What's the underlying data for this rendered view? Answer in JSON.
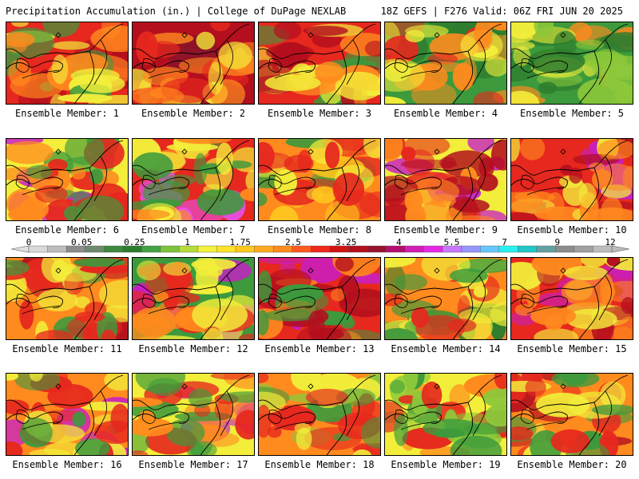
{
  "header": {
    "title": "Precipitation Accumulation (in.) | College of DuPage NEXLAB",
    "run_info": "18Z GEFS | F276 Valid: 06Z FRI JUN 20 2025"
  },
  "colors": {
    "levels": [
      "#d9d9d9",
      "#bdbdbd",
      "#8c8c8c",
      "#6e8a6e",
      "#3c8a3c",
      "#2e7d2e",
      "#44a144",
      "#7cc33a",
      "#b6dc3a",
      "#f2f23a",
      "#ffe22a",
      "#ffc81e",
      "#ffa81e",
      "#ff8a1e",
      "#ff5a1e",
      "#f0281e",
      "#d21414",
      "#b40f1e",
      "#96142d",
      "#b40f6e",
      "#d21eb4",
      "#e628e6",
      "#c878ff",
      "#9696ff",
      "#64c8ff",
      "#28f0f0",
      "#1ec8c8",
      "#64a0a0",
      "#8c8c8c",
      "#a0a0a0",
      "#bdbdbd"
    ]
  },
  "colorbar": {
    "tick_labels": [
      "0",
      "0.05",
      "0.25",
      "1",
      "1.75",
      "2.5",
      "3.25",
      "4",
      "5.5",
      "7",
      "9",
      "12"
    ]
  },
  "members": [
    {
      "label": "Ensemble Member: 1"
    },
    {
      "label": "Ensemble Member: 2"
    },
    {
      "label": "Ensemble Member: 3"
    },
    {
      "label": "Ensemble Member: 4"
    },
    {
      "label": "Ensemble Member: 5"
    },
    {
      "label": "Ensemble Member: 6"
    },
    {
      "label": "Ensemble Member: 7"
    },
    {
      "label": "Ensemble Member: 8"
    },
    {
      "label": "Ensemble Member: 9"
    },
    {
      "label": "Ensemble Member: 10"
    },
    {
      "label": "Ensemble Member: 11"
    },
    {
      "label": "Ensemble Member: 12"
    },
    {
      "label": "Ensemble Member: 13"
    },
    {
      "label": "Ensemble Member: 14"
    },
    {
      "label": "Ensemble Member: 15"
    },
    {
      "label": "Ensemble Member: 16"
    },
    {
      "label": "Ensemble Member: 17"
    },
    {
      "label": "Ensemble Member: 18"
    },
    {
      "label": "Ensemble Member: 19"
    },
    {
      "label": "Ensemble Member: 20"
    }
  ]
}
